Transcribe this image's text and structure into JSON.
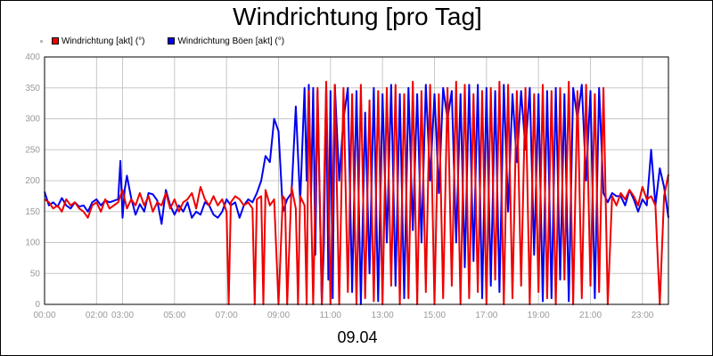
{
  "chart_data": {
    "type": "line",
    "title": "Windrichtung [pro Tag]",
    "xlabel": "09.04",
    "ylabel": "",
    "ylim": [
      0,
      400
    ],
    "xlim": [
      0,
      1440
    ],
    "grid": true,
    "legend_position": "top-left",
    "y_ticks": [
      0,
      50,
      100,
      150,
      200,
      250,
      300,
      350,
      400
    ],
    "x_ticks": [
      {
        "minute": 0,
        "label": "00:00"
      },
      {
        "minute": 120,
        "label": "02:00"
      },
      {
        "minute": 180,
        "label": "03:00"
      },
      {
        "minute": 300,
        "label": "05:00"
      },
      {
        "minute": 420,
        "label": "07:00"
      },
      {
        "minute": 540,
        "label": "09:00"
      },
      {
        "minute": 660,
        "label": "11:00"
      },
      {
        "minute": 780,
        "label": "13:00"
      },
      {
        "minute": 900,
        "label": "15:00"
      },
      {
        "minute": 1020,
        "label": "17:00"
      },
      {
        "minute": 1140,
        "label": "19:00"
      },
      {
        "minute": 1260,
        "label": "21:00"
      },
      {
        "minute": 1380,
        "label": "23:00"
      }
    ],
    "series": [
      {
        "name": "Windrichtung Böen [akt] (°)",
        "color": "#0000ee",
        "x": [
          0,
          10,
          20,
          30,
          40,
          50,
          60,
          70,
          80,
          90,
          100,
          110,
          120,
          130,
          140,
          150,
          170,
          175,
          180,
          185,
          190,
          200,
          210,
          220,
          230,
          240,
          250,
          260,
          270,
          280,
          290,
          300,
          310,
          320,
          330,
          340,
          350,
          360,
          370,
          380,
          390,
          400,
          410,
          420,
          430,
          440,
          450,
          460,
          470,
          480,
          490,
          500,
          510,
          520,
          530,
          540,
          550,
          560,
          570,
          580,
          590,
          600,
          605,
          610,
          615,
          620,
          625,
          630,
          640,
          645,
          650,
          655,
          660,
          665,
          670,
          680,
          690,
          700,
          710,
          720,
          730,
          740,
          750,
          760,
          770,
          780,
          790,
          800,
          810,
          820,
          830,
          840,
          850,
          860,
          870,
          880,
          890,
          900,
          910,
          920,
          930,
          940,
          950,
          960,
          970,
          980,
          990,
          1000,
          1010,
          1020,
          1030,
          1040,
          1050,
          1060,
          1070,
          1080,
          1090,
          1100,
          1110,
          1120,
          1130,
          1140,
          1150,
          1160,
          1170,
          1180,
          1190,
          1200,
          1210,
          1220,
          1230,
          1240,
          1250,
          1260,
          1270,
          1280,
          1290,
          1300,
          1310,
          1320,
          1330,
          1340,
          1350,
          1360,
          1370,
          1380,
          1390,
          1400,
          1410,
          1420,
          1430,
          1440
        ],
        "values": [
          182,
          160,
          165,
          158,
          172,
          160,
          155,
          165,
          158,
          160,
          150,
          165,
          170,
          160,
          168,
          165,
          170,
          232,
          140,
          185,
          208,
          172,
          145,
          162,
          150,
          180,
          178,
          168,
          130,
          185,
          160,
          145,
          160,
          150,
          165,
          140,
          150,
          145,
          165,
          160,
          145,
          140,
          150,
          170,
          160,
          165,
          140,
          160,
          170,
          165,
          180,
          200,
          240,
          230,
          300,
          280,
          150,
          170,
          180,
          320,
          165,
          350,
          200,
          355,
          175,
          350,
          80,
          345,
          0,
          100,
          350,
          40,
          345,
          10,
          355,
          200,
          300,
          350,
          20,
          345,
          0,
          310,
          50,
          350,
          5,
          340,
          100,
          355,
          30,
          340,
          10,
          350,
          120,
          340,
          100,
          355,
          200,
          340,
          180,
          350,
          300,
          345,
          100,
          340,
          60,
          355,
          70,
          355,
          10,
          350,
          30,
          345,
          20,
          355,
          150,
          340,
          230,
          345,
          250,
          350,
          80,
          340,
          5,
          345,
          10,
          350,
          40,
          340,
          5,
          350,
          300,
          355,
          200,
          345,
          10,
          350,
          180,
          165,
          180,
          175,
          175,
          160,
          185,
          170,
          150,
          170,
          160,
          250,
          160,
          220,
          190,
          140
        ]
      },
      {
        "name": "Windrichtung [akt] (°)",
        "color": "#ee0000",
        "x": [
          0,
          10,
          20,
          30,
          40,
          50,
          60,
          70,
          80,
          90,
          100,
          110,
          120,
          130,
          140,
          150,
          170,
          180,
          190,
          200,
          210,
          220,
          230,
          240,
          250,
          260,
          270,
          280,
          290,
          300,
          310,
          320,
          330,
          340,
          350,
          360,
          370,
          380,
          390,
          400,
          410,
          420,
          425,
          430,
          440,
          450,
          460,
          470,
          480,
          485,
          490,
          500,
          505,
          510,
          520,
          530,
          540,
          550,
          555,
          560,
          570,
          580,
          585,
          590,
          600,
          605,
          610,
          620,
          630,
          640,
          650,
          660,
          670,
          680,
          690,
          700,
          710,
          720,
          730,
          740,
          750,
          760,
          770,
          780,
          790,
          800,
          810,
          820,
          830,
          840,
          850,
          860,
          870,
          880,
          890,
          900,
          910,
          920,
          930,
          940,
          950,
          960,
          970,
          980,
          990,
          1000,
          1010,
          1020,
          1030,
          1040,
          1050,
          1060,
          1070,
          1080,
          1090,
          1100,
          1110,
          1120,
          1130,
          1140,
          1150,
          1160,
          1170,
          1180,
          1190,
          1200,
          1210,
          1220,
          1230,
          1240,
          1250,
          1260,
          1270,
          1280,
          1290,
          1300,
          1310,
          1320,
          1330,
          1340,
          1350,
          1360,
          1370,
          1380,
          1390,
          1400,
          1410,
          1420,
          1430,
          1440
        ],
        "values": [
          170,
          165,
          155,
          160,
          150,
          170,
          160,
          165,
          155,
          150,
          140,
          160,
          165,
          150,
          170,
          155,
          165,
          185,
          155,
          170,
          160,
          180,
          160,
          175,
          150,
          165,
          160,
          180,
          155,
          170,
          150,
          165,
          170,
          180,
          155,
          190,
          170,
          160,
          175,
          160,
          170,
          150,
          0,
          165,
          175,
          170,
          160,
          165,
          155,
          0,
          170,
          175,
          0,
          185,
          160,
          170,
          0,
          175,
          170,
          0,
          190,
          155,
          0,
          175,
          160,
          0,
          345,
          0,
          350,
          0,
          360,
          0,
          355,
          0,
          350,
          20,
          340,
          0,
          355,
          10,
          330,
          5,
          345,
          0,
          350,
          30,
          355,
          0,
          340,
          10,
          360,
          0,
          345,
          20,
          355,
          0,
          340,
          10,
          350,
          30,
          360,
          0,
          355,
          10,
          340,
          20,
          345,
          0,
          350,
          40,
          360,
          0,
          355,
          10,
          345,
          30,
          350,
          0,
          340,
          20,
          355,
          10,
          345,
          0,
          350,
          40,
          360,
          0,
          345,
          10,
          355,
          30,
          340,
          20,
          350,
          0,
          175,
          160,
          180,
          170,
          185,
          175,
          160,
          190,
          170,
          175,
          160,
          0,
          175,
          210
        ]
      }
    ]
  }
}
